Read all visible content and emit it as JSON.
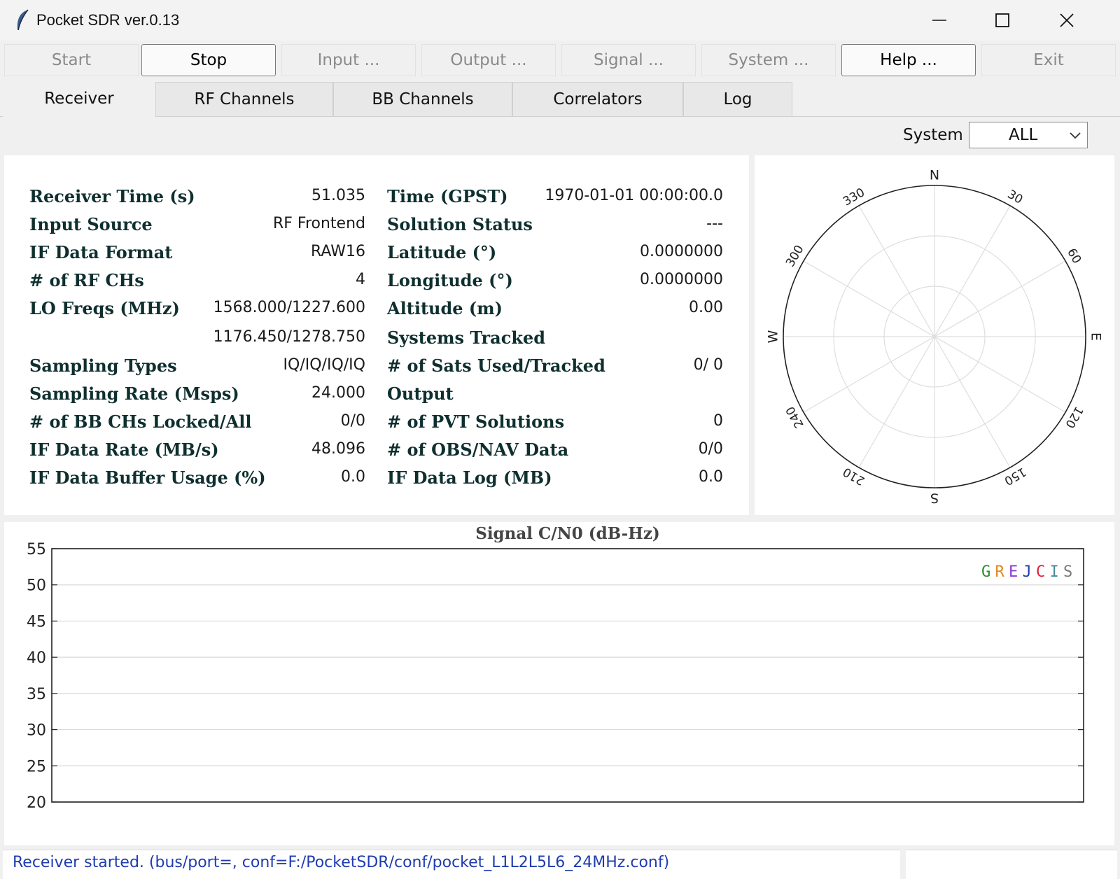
{
  "window": {
    "title": "Pocket SDR ver.0.13",
    "controls": [
      "–",
      "☐",
      "✕"
    ]
  },
  "toolbar": {
    "start": "Start",
    "stop": "Stop",
    "input": "Input ...",
    "output": "Output ...",
    "signal": "Signal ...",
    "system": "System ...",
    "help": "Help ...",
    "exit": "Exit"
  },
  "tabs": [
    "Receiver",
    "RF Channels",
    "BB Channels",
    "Correlators",
    "Log"
  ],
  "system_select": {
    "label": "System",
    "value": "ALL"
  },
  "left_info": [
    {
      "label": "Receiver Time (s)",
      "value": "51.035"
    },
    {
      "label": "Input Source",
      "value": "RF Frontend"
    },
    {
      "label": "IF Data Format",
      "value": "RAW16"
    },
    {
      "label": "# of RF CHs",
      "value": "4"
    },
    {
      "label": "LO Freqs (MHz)",
      "value": "1568.000/1227.600"
    },
    {
      "label": "",
      "value": "1176.450/1278.750"
    },
    {
      "label": "Sampling Types",
      "value": "IQ/IQ/IQ/IQ"
    },
    {
      "label": "Sampling Rate (Msps)",
      "value": "24.000"
    },
    {
      "label": "# of BB CHs Locked/All",
      "value": "0/0"
    },
    {
      "label": "IF Data Rate (MB/s)",
      "value": "48.096"
    },
    {
      "label": "IF Data Buffer Usage (%)",
      "value": "0.0"
    }
  ],
  "right_info": [
    {
      "label": "Time (GPST)",
      "value": "1970-01-01 00:00:00.0"
    },
    {
      "label": "Solution Status",
      "value": "---"
    },
    {
      "label": "Latitude (°)",
      "value": "0.0000000"
    },
    {
      "label": "Longitude (°)",
      "value": "0.0000000"
    },
    {
      "label": "Altitude (m)",
      "value": "0.00"
    },
    {
      "label": "Systems Tracked",
      "value": ""
    },
    {
      "label": "# of Sats Used/Tracked",
      "value": "0/ 0"
    },
    {
      "label": "Output",
      "value": ""
    },
    {
      "label": "# of PVT Solutions",
      "value": "0"
    },
    {
      "label": "# of OBS/NAV Data",
      "value": "0/0"
    },
    {
      "label": "IF Data Log (MB)",
      "value": "0.0"
    }
  ],
  "skyplot": {
    "cardinals": {
      "n": "N",
      "e": "E",
      "s": "S",
      "w": "W"
    },
    "azimuths": [
      "30",
      "60",
      "120",
      "150",
      "210",
      "240",
      "300",
      "330"
    ]
  },
  "chart_data": {
    "type": "bar",
    "title": "Signal C/N0 (dB-Hz)",
    "ylim": [
      20,
      55
    ],
    "yticks": [
      "55",
      "50",
      "45",
      "40",
      "35",
      "30",
      "25",
      "20"
    ],
    "series": [],
    "legend": {
      "placement": "top-right",
      "items": [
        {
          "label": "G",
          "color": "#2e8b2e"
        },
        {
          "label": "R",
          "color": "#e08a1e"
        },
        {
          "label": "E",
          "color": "#8a3cd0"
        },
        {
          "label": "J",
          "color": "#1f3cb0"
        },
        {
          "label": "C",
          "color": "#e0203a"
        },
        {
          "label": "I",
          "color": "#4a8a9a"
        },
        {
          "label": "S",
          "color": "#7a7a7a"
        }
      ]
    }
  },
  "status": {
    "message": "Receiver started. (bus/port=, conf=F:/PocketSDR/conf/pocket_L1L2L5L6_24MHz.conf)"
  }
}
